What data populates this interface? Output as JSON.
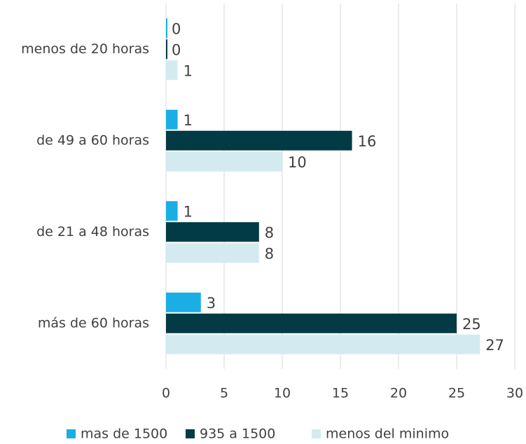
{
  "chart_data": {
    "type": "hbar",
    "categories": [
      "menos de 20 horas",
      "de 49 a 60 horas",
      "de 21 a 48 horas",
      "más de 60 horas"
    ],
    "series": [
      {
        "name": "mas de 1500",
        "color": "#1aaee5",
        "values": [
          0,
          1,
          1,
          3
        ]
      },
      {
        "name": "935 a 1500",
        "color": "#023b45",
        "values": [
          0,
          16,
          8,
          25
        ]
      },
      {
        "name": "menos del minimo",
        "color": "#d3ebf0",
        "values": [
          1,
          10,
          8,
          27
        ]
      }
    ],
    "xlim": [
      0,
      30
    ],
    "xticks": [
      0,
      5,
      10,
      15,
      20,
      25,
      30
    ],
    "grid": true,
    "legend": "bottom"
  }
}
